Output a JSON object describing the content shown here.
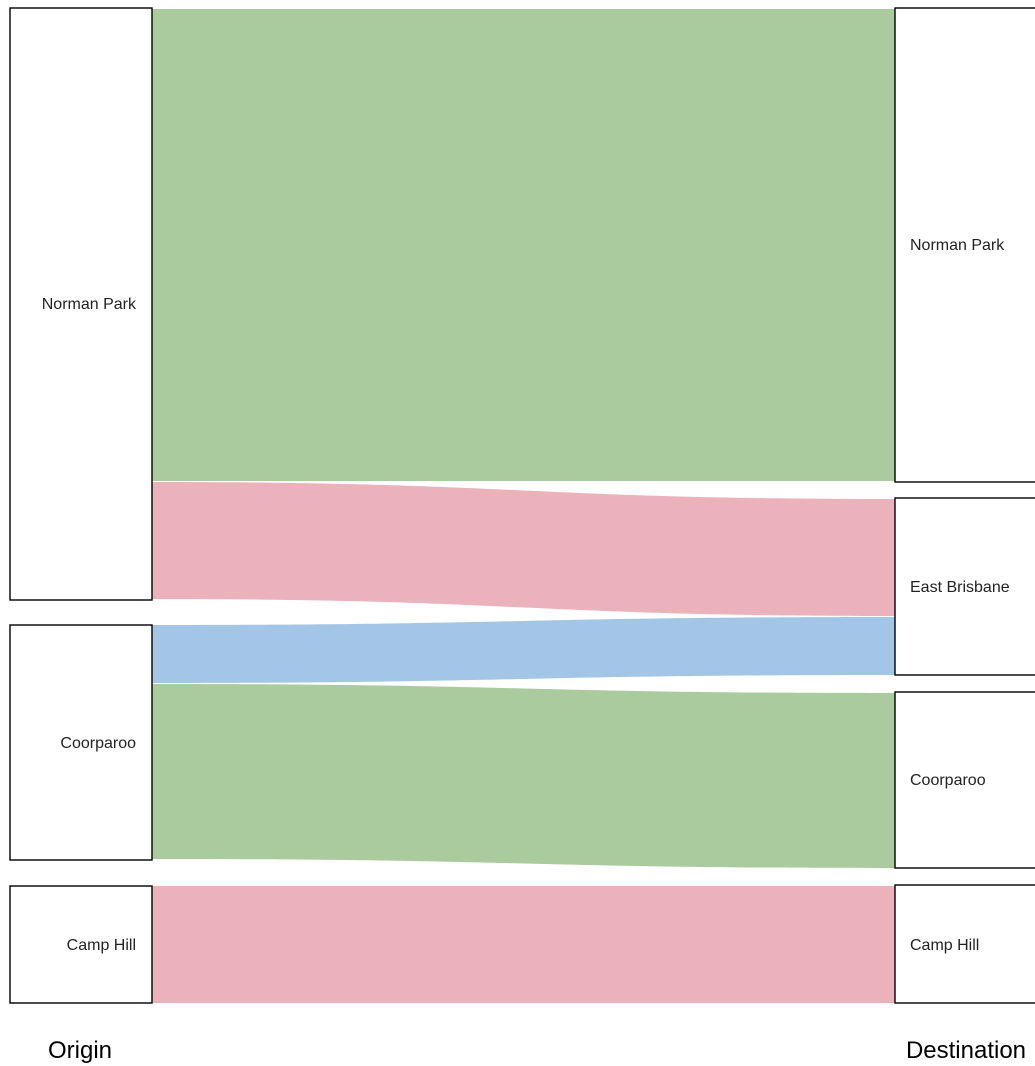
{
  "axis_labels": {
    "left": "Origin",
    "right": "Destination"
  },
  "colors": {
    "green": "#a9cb9e",
    "pink": "#ebb2bc",
    "blue": "#a4c6e6"
  },
  "nodes": {
    "origin": [
      "Norman Park",
      "Coorparoo",
      "Camp Hill"
    ],
    "destination": [
      "Norman Park",
      "East Brisbane",
      "Coorparoo",
      "Camp Hill"
    ]
  },
  "links": [
    {
      "from": "Norman Park",
      "to": "Norman Park",
      "color": "green"
    },
    {
      "from": "Norman Park",
      "to": "East Brisbane",
      "color": "pink"
    },
    {
      "from": "Coorparoo",
      "to": "East Brisbane",
      "color": "blue"
    },
    {
      "from": "Coorparoo",
      "to": "Coorparoo",
      "color": "green"
    },
    {
      "from": "Camp Hill",
      "to": "Camp Hill",
      "color": "pink"
    }
  ]
}
